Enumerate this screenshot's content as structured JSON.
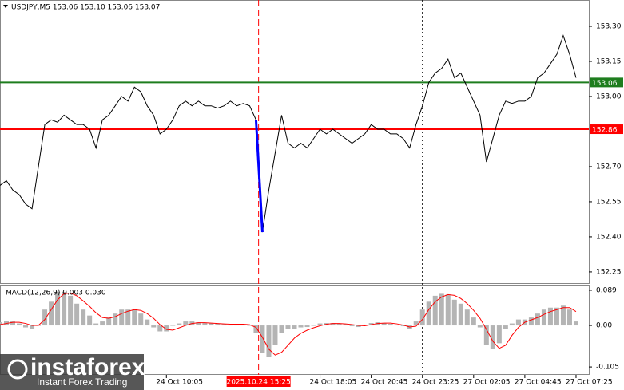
{
  "chart_data": [
    {
      "type": "line",
      "title": "USDJPY,M5  153.06 153.10 153.06 153.07",
      "color": "#000000",
      "highlight_color": "#0000ff",
      "series": [
        {
          "color": "#000000",
          "values": [
            152.62,
            152.64,
            152.6,
            152.58,
            152.54,
            152.52,
            152.7,
            152.88,
            152.9,
            152.89,
            152.92,
            152.9,
            152.88,
            152.88,
            152.86,
            152.78,
            152.9,
            152.92,
            152.96,
            153.0,
            152.98,
            153.04,
            153.02,
            152.96,
            152.92,
            152.84,
            152.86,
            152.9,
            152.96,
            152.98,
            152.96,
            152.98,
            152.96,
            152.96,
            152.95,
            152.96,
            152.98,
            152.96,
            152.97,
            152.96,
            152.9,
            152.42,
            152.6,
            152.76,
            152.92,
            152.8,
            152.78,
            152.8,
            152.78,
            152.82,
            152.86,
            152.84,
            152.86,
            152.84,
            152.82,
            152.8,
            152.82,
            152.84,
            152.88,
            152.86,
            152.86,
            152.84,
            152.84,
            152.82,
            152.78,
            152.88,
            152.96,
            153.06,
            153.1,
            153.12,
            153.16,
            153.08,
            153.1,
            153.04,
            152.98,
            152.92,
            152.72,
            152.82,
            152.92,
            152.98,
            152.97,
            152.98,
            152.98,
            153.0,
            153.08,
            153.1,
            153.14,
            153.18,
            153.26,
            153.18,
            153.08
          ]
        }
      ],
      "ylim": [
        152.202,
        153.4125
      ],
      "yticks": [
        {
          "value": 153.3,
          "label": "153.30"
        },
        {
          "value": 153.15,
          "label": "153.15"
        },
        {
          "value": 153.0,
          "label": "153.00"
        },
        {
          "value": 152.7,
          "label": "152.70"
        },
        {
          "value": 152.55,
          "label": "152.55"
        },
        {
          "value": 152.4,
          "label": "152.40"
        },
        {
          "value": 152.25,
          "label": "152.25"
        }
      ],
      "xlim": [
        0,
        92
      ],
      "levels": [
        {
          "value": 153.06,
          "label": "153.06",
          "color": "#1e7d1e"
        },
        {
          "value": 152.86,
          "label": "152.86",
          "color": "#ff0000"
        }
      ],
      "marker": {
        "value": 40.4,
        "label": "2025.10.24 15:25",
        "color": "#ff0000"
      },
      "separator": 66,
      "xticks": [
        {
          "value": 26,
          "label": "24 Oct 10:05"
        },
        {
          "value": 50,
          "label": "24 Oct 18:05"
        },
        {
          "value": 58,
          "label": "24 Oct 20:45"
        },
        {
          "value": 66,
          "label": "24 Oct 23:25"
        },
        {
          "value": 74,
          "label": "27 Oct 02:05"
        },
        {
          "value": 82,
          "label": "27 Oct 04:45"
        },
        {
          "value": 90,
          "label": "27 Oct 07:25"
        }
      ]
    },
    {
      "type": "macd",
      "title": "MACD(12,26,9) 0.003 0.030",
      "series": [
        {
          "color": "#b4b4b4",
          "values": [
            0.008,
            0.012,
            0.01,
            0.005,
            -0.005,
            -0.01,
            0.0,
            0.04,
            0.06,
            0.085,
            0.085,
            0.075,
            0.055,
            0.04,
            0.025,
            0.005,
            0.01,
            0.02,
            0.03,
            0.04,
            0.04,
            0.04,
            0.03,
            0.015,
            -0.005,
            -0.015,
            -0.015,
            0.0,
            0.005,
            0.01,
            0.01,
            0.008,
            0.006,
            0.005,
            0.004,
            0.003,
            0.002,
            0.003,
            0.002,
            0.0,
            -0.02,
            -0.07,
            -0.08,
            -0.05,
            -0.02,
            -0.01,
            -0.008,
            -0.005,
            -0.004,
            0.0,
            0.005,
            0.006,
            0.006,
            0.005,
            0.003,
            -0.002,
            -0.004,
            0.002,
            0.006,
            0.008,
            0.006,
            0.004,
            0.002,
            -0.002,
            -0.01,
            0.01,
            0.04,
            0.06,
            0.075,
            0.08,
            0.078,
            0.065,
            0.055,
            0.04,
            0.02,
            -0.005,
            -0.05,
            -0.06,
            -0.045,
            -0.01,
            0.005,
            0.015,
            0.015,
            0.02,
            0.03,
            0.04,
            0.045,
            0.045,
            0.05,
            0.04,
            0.01
          ]
        },
        {
          "color": "#ff0000",
          "values": [
            0.002,
            0.005,
            0.008,
            0.008,
            0.005,
            0.0,
            0.0,
            0.015,
            0.04,
            0.065,
            0.08,
            0.082,
            0.075,
            0.062,
            0.048,
            0.032,
            0.02,
            0.018,
            0.022,
            0.03,
            0.036,
            0.04,
            0.038,
            0.03,
            0.018,
            0.002,
            -0.01,
            -0.012,
            -0.006,
            0.0,
            0.005,
            0.007,
            0.007,
            0.006,
            0.005,
            0.004,
            0.003,
            0.003,
            0.003,
            0.002,
            -0.005,
            -0.03,
            -0.06,
            -0.075,
            -0.068,
            -0.05,
            -0.032,
            -0.02,
            -0.012,
            -0.006,
            -0.001,
            0.003,
            0.005,
            0.005,
            0.004,
            0.002,
            0.0,
            -0.001,
            0.002,
            0.005,
            0.006,
            0.006,
            0.004,
            0.001,
            -0.004,
            -0.002,
            0.015,
            0.04,
            0.06,
            0.072,
            0.078,
            0.076,
            0.068,
            0.055,
            0.038,
            0.018,
            -0.01,
            -0.04,
            -0.058,
            -0.05,
            -0.025,
            -0.005,
            0.008,
            0.014,
            0.02,
            0.028,
            0.035,
            0.04,
            0.045,
            0.045,
            0.035
          ]
        }
      ],
      "ylim": [
        -0.125,
        0.103
      ],
      "yticks": [
        0.089,
        {
          "value": 0,
          "label": "0.00"
        },
        -0.105
      ],
      "xlim": [
        0,
        92
      ]
    }
  ],
  "logo": {
    "name": "instaforex",
    "tagline": "Instant Forex Trading"
  }
}
